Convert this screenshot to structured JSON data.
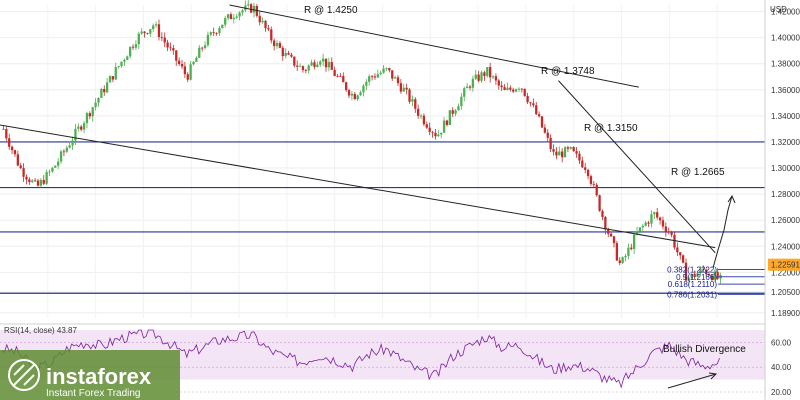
{
  "chart_data": {
    "type": "candlestick",
    "currency": "USD",
    "price_axis": {
      "ticks": [
        "1.42000",
        "1.40000",
        "1.38000",
        "1.36000",
        "1.34000",
        "1.32000",
        "1.30000",
        "1.28000",
        "1.26000",
        "1.24000",
        "1.22000",
        "1.20500",
        "1.18900"
      ],
      "tick_values": [
        1.42,
        1.4,
        1.38,
        1.36,
        1.34,
        1.32,
        1.3,
        1.28,
        1.26,
        1.24,
        1.22,
        1.205,
        1.189
      ],
      "range": [
        1.185,
        1.425
      ],
      "current_price_label": "1.22591",
      "current_price": 1.2259
    },
    "candles_path": [
      1.33,
      1.3,
      1.285,
      1.3,
      1.32,
      1.34,
      1.36,
      1.38,
      1.4,
      1.41,
      1.39,
      1.37,
      1.395,
      1.41,
      1.42,
      1.423,
      1.4,
      1.385,
      1.375,
      1.385,
      1.37,
      1.355,
      1.37,
      1.375,
      1.36,
      1.34,
      1.325,
      1.345,
      1.365,
      1.374,
      1.358,
      1.364,
      1.34,
      1.31,
      1.313,
      1.3,
      1.26,
      1.225,
      1.25,
      1.265,
      1.25,
      1.215,
      1.222,
      1.214
    ],
    "horizontal_levels": [
      1.32,
      1.285,
      1.251,
      1.204
    ],
    "trendlines": [
      {
        "name": "main-resistance",
        "points": [
          [
            0.3,
            1.425
          ],
          [
            0.835,
            1.362
          ]
        ]
      },
      {
        "name": "steep-resistance",
        "points": [
          [
            0.73,
            1.367
          ],
          [
            0.935,
            1.235
          ]
        ]
      },
      {
        "name": "long-support",
        "points": [
          [
            0.0,
            1.333
          ],
          [
            0.935,
            1.239
          ]
        ]
      }
    ],
    "annotations": {
      "r1": "R @ 1.4250",
      "r2": "R @ 1.3748",
      "r3": "R @ 1.3150",
      "r4": "R @ 1.2665",
      "bullish": "Bullish Divergence"
    },
    "fibonacci": [
      {
        "label": "0.382(1.2222)",
        "value": 1.2222
      },
      {
        "label": "0.5(1.2166)",
        "value": 1.2166
      },
      {
        "label": "0.618(1.2110)",
        "value": 1.211
      },
      {
        "label": "0.786(1.2031)",
        "value": 1.2031
      }
    ],
    "rsi": {
      "label": "RSI(14, close) 43.87",
      "ticks": [
        "60.00",
        "40.00",
        "20.00"
      ],
      "tick_values": [
        60,
        40,
        20
      ],
      "range": [
        20,
        70
      ],
      "band": [
        30,
        70
      ],
      "path": [
        55,
        52,
        38,
        44,
        56,
        60,
        57,
        63,
        66,
        68,
        60,
        50,
        56,
        62,
        64,
        66,
        54,
        48,
        44,
        50,
        46,
        41,
        51,
        55,
        46,
        37,
        33,
        49,
        57,
        65,
        56,
        58,
        47,
        38,
        42,
        40,
        32,
        26,
        39,
        52,
        58,
        46,
        41,
        44
      ]
    }
  },
  "brand": {
    "name": "instaforex",
    "tagline": "Instant Forex Trading"
  },
  "colors": {
    "bull": "#4caf50",
    "bear": "#c62828",
    "level": "#283593",
    "trend": "#222222",
    "rsi_line": "#7b1fa2",
    "rsi_band": "#f3e5f5",
    "price_badge": "#ffa726",
    "brand_bg": "#5e8c31"
  }
}
